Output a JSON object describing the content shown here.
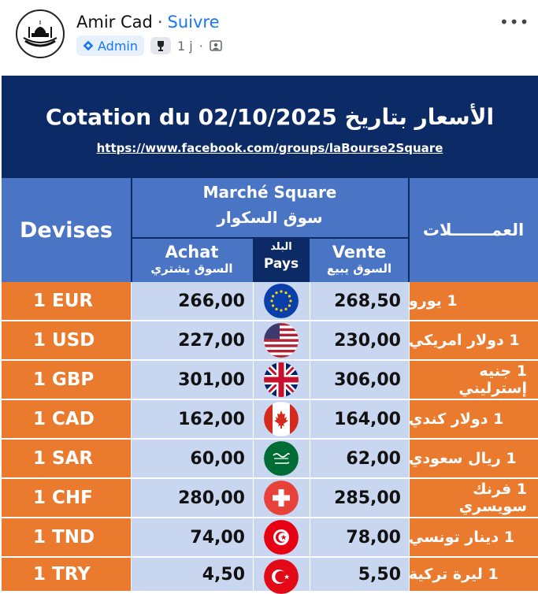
{
  "post": {
    "author": "Amir Cad",
    "separator": "·",
    "follow": "Suivre",
    "badge": "Admin",
    "time": "1 j",
    "dot": "·",
    "more": "•••"
  },
  "table": {
    "title": "Cotation du 02/10/2025 الأسعار بتاريخ",
    "url": "https://www.facebook.com/groups/laBourse2Square",
    "headers": {
      "devises": "Devises",
      "market_fr": "Marché Square",
      "market_ar": "سوق السكوار",
      "currencies_ar": "العمـــــــلات",
      "achat": "Achat",
      "achat_ar": "السوق يشتري",
      "pays_ar": "البلد",
      "pays": "Pays",
      "vente": "Vente",
      "vente_ar": "السوق يبيع"
    },
    "rows": [
      {
        "devise": "1 EUR",
        "achat": "266,00",
        "vente": "268,50",
        "arabic": "1 يورو",
        "flag": "eu-flag-icon"
      },
      {
        "devise": "1 USD",
        "achat": "227,00",
        "vente": "230,00",
        "arabic": "1 دولار امريكي",
        "flag": "us-flag-icon"
      },
      {
        "devise": "1 GBP",
        "achat": "301,00",
        "vente": "306,00",
        "arabic": "1 جنيه إسترليني",
        "flag": "uk-flag-icon"
      },
      {
        "devise": "1 CAD",
        "achat": "162,00",
        "vente": "164,00",
        "arabic": "1 دولار كندي",
        "flag": "canada-flag-icon"
      },
      {
        "devise": "1 SAR",
        "achat": "60,00",
        "vente": "62,00",
        "arabic": "1 ريال سعودي",
        "flag": "saudi-flag-icon"
      },
      {
        "devise": "1 CHF",
        "achat": "280,00",
        "vente": "285,00",
        "arabic": "1 فرنك سويسري",
        "flag": "swiss-flag-icon"
      },
      {
        "devise": "1 TND",
        "achat": "74,00",
        "vente": "78,00",
        "arabic": "1 دينار تونسي",
        "flag": "tunisia-flag-icon"
      },
      {
        "devise": "1 TRY",
        "achat": "4,50",
        "vente": "5,50",
        "arabic": "1 ليرة تركية",
        "flag": "turkey-flag-icon"
      }
    ]
  },
  "colors": {
    "navy": "#0c2a66",
    "header_blue": "#4a74c4",
    "orange": "#ea7a2d",
    "light_blue": "#c9d6ef",
    "link_blue": "#1877f2"
  }
}
